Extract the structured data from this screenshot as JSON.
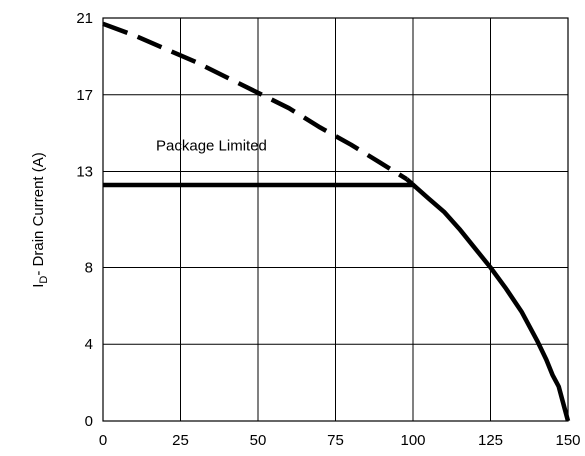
{
  "chart_data": {
    "type": "line",
    "xlabel": "",
    "ylabel": "I",
    "ylabel_subscript": "D",
    "ylabel_suffix": "- Drain Current (A)",
    "xlim": [
      0,
      150
    ],
    "ylim": [
      0,
      21
    ],
    "x_ticks": [
      0,
      25,
      50,
      75,
      100,
      125,
      150
    ],
    "y_ticks": [
      0,
      4,
      8,
      13,
      17,
      21
    ],
    "grid": true,
    "legend": "none",
    "annotations": [
      {
        "text": "Package Limited",
        "x": 50,
        "y": 14.1
      }
    ],
    "series": [
      {
        "style": "dashed",
        "color": "#000000",
        "x": [
          0,
          10,
          20,
          30,
          40,
          50,
          60,
          70,
          80,
          90,
          98
        ],
        "y": [
          20.7,
          20.1,
          19.4,
          18.7,
          17.9,
          17.1,
          16.3,
          15.3,
          14.4,
          13.4,
          12.6
        ]
      },
      {
        "style": "solid",
        "color": "#000000",
        "x": [
          0,
          100
        ],
        "y": [
          12.3,
          12.3
        ]
      },
      {
        "style": "solid",
        "color": "#000000",
        "x": [
          98,
          105,
          110,
          115,
          120,
          125,
          130,
          135,
          140,
          143,
          145,
          147,
          148,
          149,
          150
        ],
        "y": [
          12.6,
          11.6,
          10.9,
          10.0,
          9.0,
          8.0,
          6.9,
          5.7,
          4.2,
          3.2,
          2.4,
          1.8,
          1.2,
          0.6,
          0
        ]
      }
    ]
  }
}
